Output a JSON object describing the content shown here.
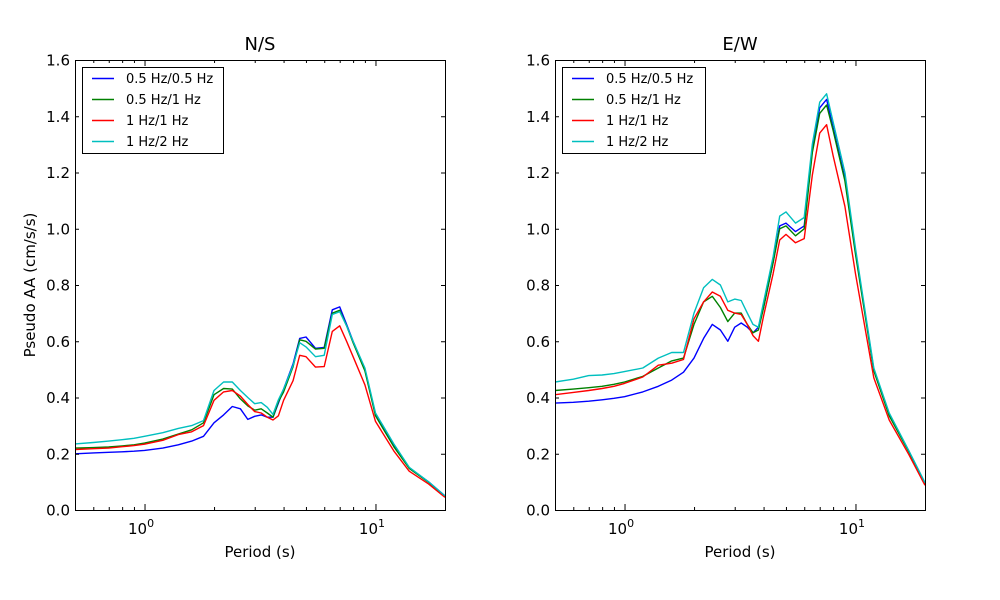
{
  "chart_data": [
    {
      "type": "line",
      "title": "N/S",
      "xlabel": "Period (s)",
      "ylabel": "Pseudo AA (cm/s/s)",
      "xscale": "log",
      "xlim": [
        0.5,
        20
      ],
      "ylim": [
        0.0,
        1.6
      ],
      "yticks": [
        "0.0",
        "0.2",
        "0.4",
        "0.6",
        "0.8",
        "1.0",
        "1.2",
        "1.4",
        "1.6"
      ],
      "xticks": [
        {
          "value": 1,
          "base": "10",
          "exp": "0"
        },
        {
          "value": 10,
          "base": "10",
          "exp": "1"
        }
      ],
      "legend_position": "top-left",
      "x": [
        0.5,
        0.6,
        0.7,
        0.8,
        0.9,
        1.0,
        1.2,
        1.4,
        1.6,
        1.8,
        2.0,
        2.2,
        2.4,
        2.6,
        2.8,
        3.0,
        3.2,
        3.4,
        3.6,
        3.8,
        4.0,
        4.4,
        4.7,
        5.0,
        5.5,
        6.0,
        6.5,
        7.0,
        7.5,
        8.0,
        9.0,
        10.0,
        12.0,
        14.0,
        17.0,
        20.0
      ],
      "series": [
        {
          "name": "0.5 Hz/0.5 Hz",
          "color": "#0000ff",
          "values": [
            0.2,
            0.203,
            0.205,
            0.207,
            0.209,
            0.212,
            0.22,
            0.232,
            0.245,
            0.262,
            0.31,
            0.338,
            0.368,
            0.36,
            0.322,
            0.333,
            0.338,
            0.33,
            0.33,
            0.38,
            0.43,
            0.52,
            0.61,
            0.615,
            0.575,
            0.578,
            0.712,
            0.722,
            0.66,
            0.6,
            0.5,
            0.34,
            0.23,
            0.15,
            0.1,
            0.05
          ]
        },
        {
          "name": "0.5 Hz/1 Hz",
          "color": "#008000",
          "values": [
            0.22,
            0.222,
            0.224,
            0.228,
            0.232,
            0.238,
            0.252,
            0.27,
            0.285,
            0.31,
            0.41,
            0.432,
            0.43,
            0.395,
            0.37,
            0.355,
            0.36,
            0.345,
            0.33,
            0.385,
            0.42,
            0.51,
            0.605,
            0.6,
            0.572,
            0.575,
            0.7,
            0.71,
            0.655,
            0.595,
            0.495,
            0.335,
            0.225,
            0.148,
            0.098,
            0.048
          ]
        },
        {
          "name": "1 Hz/1 Hz",
          "color": "#ff0000",
          "values": [
            0.215,
            0.218,
            0.22,
            0.225,
            0.229,
            0.234,
            0.248,
            0.268,
            0.278,
            0.3,
            0.39,
            0.42,
            0.425,
            0.405,
            0.375,
            0.35,
            0.345,
            0.33,
            0.32,
            0.335,
            0.39,
            0.46,
            0.55,
            0.545,
            0.508,
            0.51,
            0.635,
            0.655,
            0.6,
            0.545,
            0.445,
            0.315,
            0.21,
            0.138,
            0.092,
            0.045
          ]
        },
        {
          "name": "1 Hz/2 Hz",
          "color": "#00bfbf",
          "values": [
            0.235,
            0.24,
            0.245,
            0.25,
            0.255,
            0.262,
            0.275,
            0.29,
            0.3,
            0.318,
            0.425,
            0.455,
            0.455,
            0.425,
            0.4,
            0.378,
            0.382,
            0.365,
            0.34,
            0.392,
            0.43,
            0.515,
            0.595,
            0.58,
            0.545,
            0.55,
            0.695,
            0.705,
            0.655,
            0.6,
            0.505,
            0.345,
            0.235,
            0.152,
            0.1,
            0.05
          ]
        }
      ]
    },
    {
      "type": "line",
      "title": "E/W",
      "xlabel": "Period (s)",
      "ylabel": "",
      "xscale": "log",
      "xlim": [
        0.5,
        20
      ],
      "ylim": [
        0.0,
        1.6
      ],
      "yticks": [
        "0.0",
        "0.2",
        "0.4",
        "0.6",
        "0.8",
        "1.0",
        "1.2",
        "1.4",
        "1.6"
      ],
      "xticks": [
        {
          "value": 1,
          "base": "10",
          "exp": "0"
        },
        {
          "value": 10,
          "base": "10",
          "exp": "1"
        }
      ],
      "legend_position": "top-left",
      "x": [
        0.5,
        0.6,
        0.7,
        0.8,
        0.9,
        1.0,
        1.2,
        1.4,
        1.6,
        1.8,
        2.0,
        2.2,
        2.4,
        2.6,
        2.8,
        3.0,
        3.2,
        3.4,
        3.6,
        3.8,
        4.0,
        4.4,
        4.7,
        5.0,
        5.5,
        6.0,
        6.5,
        7.0,
        7.5,
        8.0,
        9.0,
        10.0,
        12.0,
        14.0,
        17.0,
        20.0
      ],
      "series": [
        {
          "name": "0.5 Hz/0.5 Hz",
          "color": "#0000ff",
          "values": [
            0.38,
            0.383,
            0.387,
            0.392,
            0.397,
            0.403,
            0.42,
            0.44,
            0.462,
            0.49,
            0.54,
            0.61,
            0.66,
            0.64,
            0.6,
            0.65,
            0.665,
            0.65,
            0.63,
            0.65,
            0.72,
            0.88,
            1.01,
            1.02,
            0.99,
            1.01,
            1.28,
            1.43,
            1.46,
            1.36,
            1.18,
            0.92,
            0.5,
            0.34,
            0.21,
            0.095
          ]
        },
        {
          "name": "0.5 Hz/1 Hz",
          "color": "#008000",
          "values": [
            0.425,
            0.43,
            0.435,
            0.44,
            0.447,
            0.455,
            0.475,
            0.505,
            0.53,
            0.54,
            0.66,
            0.74,
            0.76,
            0.72,
            0.67,
            0.7,
            0.7,
            0.66,
            0.63,
            0.64,
            0.72,
            0.88,
            1.0,
            1.01,
            0.975,
            1.0,
            1.27,
            1.41,
            1.44,
            1.35,
            1.17,
            0.91,
            0.495,
            0.335,
            0.208,
            0.093
          ]
        },
        {
          "name": "1 Hz/1 Hz",
          "color": "#ff0000",
          "values": [
            0.41,
            0.418,
            0.425,
            0.432,
            0.44,
            0.45,
            0.473,
            0.515,
            0.522,
            0.535,
            0.68,
            0.74,
            0.775,
            0.76,
            0.71,
            0.7,
            0.695,
            0.66,
            0.62,
            0.6,
            0.69,
            0.84,
            0.96,
            0.98,
            0.95,
            0.965,
            1.19,
            1.34,
            1.37,
            1.26,
            1.08,
            0.84,
            0.47,
            0.32,
            0.198,
            0.088
          ]
        },
        {
          "name": "1 Hz/2 Hz",
          "color": "#00bfbf",
          "values": [
            0.455,
            0.465,
            0.478,
            0.48,
            0.485,
            0.492,
            0.505,
            0.54,
            0.56,
            0.56,
            0.7,
            0.79,
            0.82,
            0.8,
            0.74,
            0.75,
            0.745,
            0.7,
            0.66,
            0.65,
            0.74,
            0.9,
            1.045,
            1.06,
            1.02,
            1.04,
            1.3,
            1.45,
            1.48,
            1.38,
            1.2,
            0.93,
            0.505,
            0.345,
            0.212,
            0.097
          ]
        }
      ]
    }
  ]
}
